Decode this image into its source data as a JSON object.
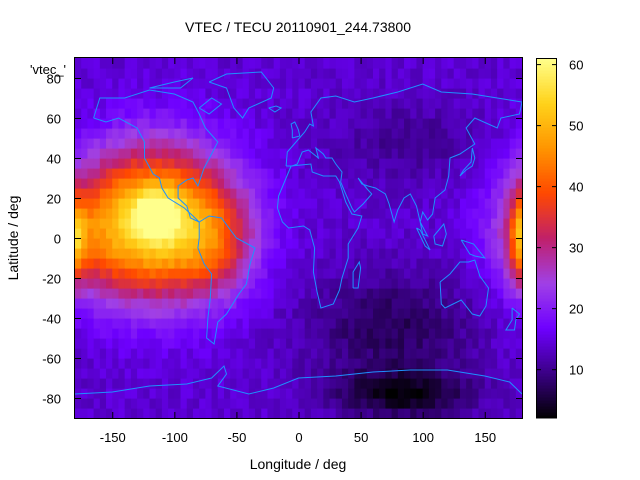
{
  "chart_data": {
    "type": "heatmap",
    "title": "VTEC / TECU 20110901_244.73800",
    "key_label": "'vtec_'",
    "xlabel": "Longitude / deg",
    "ylabel": "Latitude / deg",
    "xlim": [
      -180,
      180
    ],
    "ylim": [
      -90,
      90
    ],
    "x_ticks": [
      -150,
      -100,
      -50,
      0,
      50,
      100,
      150
    ],
    "y_ticks": [
      -80,
      -60,
      -40,
      -20,
      0,
      20,
      40,
      60,
      80
    ],
    "colorbar": {
      "min": 2,
      "max": 61,
      "ticks": [
        10,
        20,
        30,
        40,
        50,
        60
      ]
    },
    "colormap": [
      "#000000",
      "#3a0085",
      "#6e00ff",
      "#a040e6",
      "#c0206a",
      "#ff4800",
      "#ff9500",
      "#ffd21a",
      "#ffff8c"
    ],
    "coastline_color": "#1e90ff",
    "features": [
      {
        "lon": -115,
        "lat": 8,
        "lon_width": 60,
        "lat_width": 36,
        "peak": 44
      },
      {
        "lon": -115,
        "lat": 12,
        "lon_width": 16,
        "lat_width": 10,
        "peak": 14
      },
      {
        "lon": -170,
        "lat": 0,
        "lon_width": 32,
        "lat_width": 30,
        "peak": 8
      },
      {
        "lon": -65,
        "lat": -3,
        "lon_width": 30,
        "lat_width": 25,
        "peak": 10
      },
      {
        "lon": 180,
        "lat": 0,
        "lon_width": 10,
        "lat_width": 20,
        "peak": 20
      },
      {
        "lon": 85,
        "lat": -78,
        "lon_width": 55,
        "lat_width": 12,
        "peak": -10
      },
      {
        "lon": 75,
        "lat": -45,
        "lon_width": 70,
        "lat_width": 28,
        "peak": -7
      },
      {
        "lon": 90,
        "lat": 48,
        "lon_width": 60,
        "lat_width": 20,
        "peak": -4
      }
    ]
  }
}
